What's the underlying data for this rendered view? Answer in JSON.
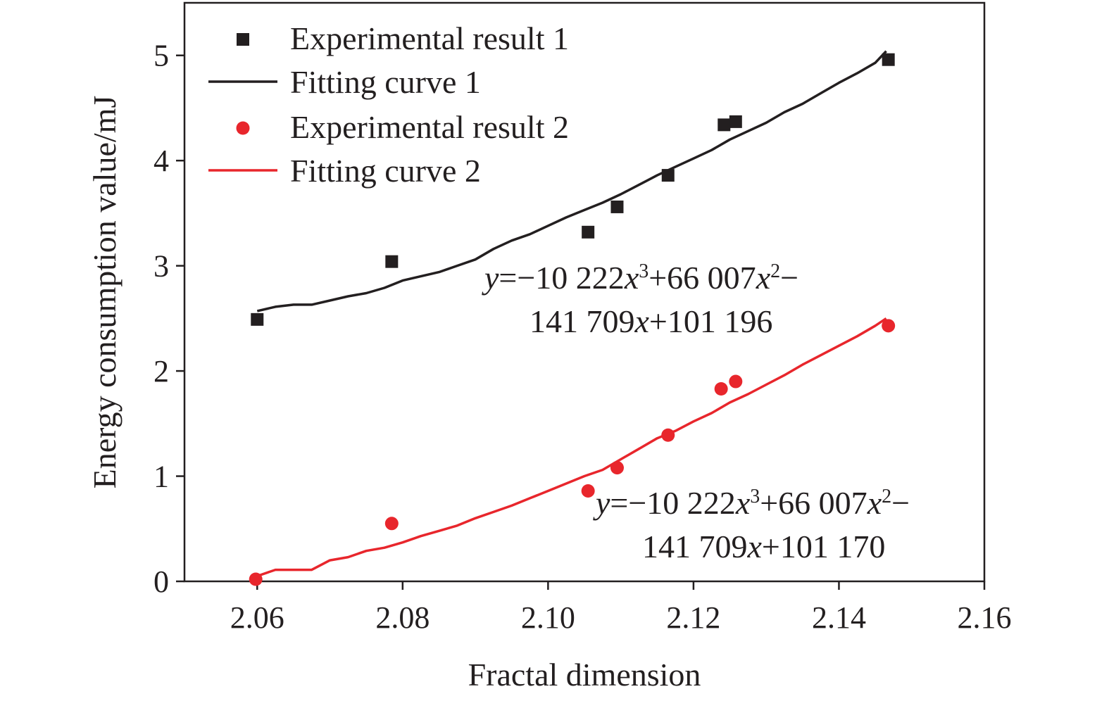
{
  "chart_data": {
    "type": "scatter",
    "xlabel": "Fractal dimension",
    "ylabel": "Energy consumption value/mJ",
    "xlim": [
      2.05,
      2.16
    ],
    "ylim": [
      0,
      5.5
    ],
    "x_ticks": [
      "2.06",
      "2.08",
      "2.10",
      "2.12",
      "2.14",
      "2.16"
    ],
    "y_ticks": [
      "0",
      "1",
      "2",
      "3",
      "4",
      "5"
    ],
    "grid": false,
    "legend_position": "top-left",
    "series": [
      {
        "name": "Experimental result 1",
        "kind": "scatter",
        "marker": "square",
        "color": "#231f20",
        "points": [
          [
            2.06,
            2.49
          ],
          [
            2.0785,
            3.04
          ],
          [
            2.1055,
            3.32
          ],
          [
            2.1095,
            3.56
          ],
          [
            2.1165,
            3.86
          ],
          [
            2.1242,
            4.34
          ],
          [
            2.1258,
            4.37
          ],
          [
            2.1468,
            4.96
          ]
        ]
      },
      {
        "name": "Fitting curve 1",
        "kind": "line",
        "color": "#231f20",
        "points": [
          [
            2.06,
            2.57
          ],
          [
            2.0625,
            2.61
          ],
          [
            2.065,
            2.63
          ],
          [
            2.0675,
            2.63
          ],
          [
            2.07,
            2.67
          ],
          [
            2.0725,
            2.71
          ],
          [
            2.075,
            2.74
          ],
          [
            2.0775,
            2.79
          ],
          [
            2.08,
            2.86
          ],
          [
            2.0825,
            2.9
          ],
          [
            2.085,
            2.94
          ],
          [
            2.0875,
            3.0
          ],
          [
            2.09,
            3.06
          ],
          [
            2.0925,
            3.16
          ],
          [
            2.095,
            3.24
          ],
          [
            2.0975,
            3.3
          ],
          [
            2.1,
            3.38
          ],
          [
            2.1025,
            3.46
          ],
          [
            2.105,
            3.53
          ],
          [
            2.1075,
            3.6
          ],
          [
            2.11,
            3.68
          ],
          [
            2.1125,
            3.77
          ],
          [
            2.115,
            3.86
          ],
          [
            2.1175,
            3.94
          ],
          [
            2.12,
            4.02
          ],
          [
            2.1225,
            4.1
          ],
          [
            2.125,
            4.2
          ],
          [
            2.1275,
            4.28
          ],
          [
            2.13,
            4.36
          ],
          [
            2.1325,
            4.46
          ],
          [
            2.135,
            4.54
          ],
          [
            2.1375,
            4.64
          ],
          [
            2.14,
            4.74
          ],
          [
            2.1425,
            4.83
          ],
          [
            2.145,
            4.93
          ],
          [
            2.1465,
            5.04
          ]
        ]
      },
      {
        "name": "Experimental result 2",
        "kind": "scatter",
        "marker": "circle",
        "color": "#e8262c",
        "points": [
          [
            2.0598,
            0.02
          ],
          [
            2.0785,
            0.55
          ],
          [
            2.1055,
            0.86
          ],
          [
            2.1095,
            1.08
          ],
          [
            2.1165,
            1.39
          ],
          [
            2.1238,
            1.83
          ],
          [
            2.1258,
            1.9
          ],
          [
            2.1468,
            2.43
          ]
        ]
      },
      {
        "name": "Fitting curve 2",
        "kind": "line",
        "color": "#e8262c",
        "points": [
          [
            2.06,
            0.05
          ],
          [
            2.0625,
            0.11
          ],
          [
            2.065,
            0.11
          ],
          [
            2.0675,
            0.11
          ],
          [
            2.07,
            0.2
          ],
          [
            2.0725,
            0.23
          ],
          [
            2.075,
            0.29
          ],
          [
            2.0775,
            0.32
          ],
          [
            2.08,
            0.37
          ],
          [
            2.0825,
            0.43
          ],
          [
            2.085,
            0.48
          ],
          [
            2.0875,
            0.53
          ],
          [
            2.09,
            0.6
          ],
          [
            2.0925,
            0.66
          ],
          [
            2.095,
            0.72
          ],
          [
            2.0975,
            0.79
          ],
          [
            2.1,
            0.86
          ],
          [
            2.1025,
            0.93
          ],
          [
            2.105,
            1.0
          ],
          [
            2.1075,
            1.06
          ],
          [
            2.11,
            1.16
          ],
          [
            2.1125,
            1.26
          ],
          [
            2.115,
            1.36
          ],
          [
            2.1175,
            1.43
          ],
          [
            2.12,
            1.52
          ],
          [
            2.1225,
            1.6
          ],
          [
            2.125,
            1.7
          ],
          [
            2.1275,
            1.78
          ],
          [
            2.13,
            1.87
          ],
          [
            2.1325,
            1.96
          ],
          [
            2.135,
            2.06
          ],
          [
            2.1375,
            2.15
          ],
          [
            2.14,
            2.24
          ],
          [
            2.1425,
            2.33
          ],
          [
            2.145,
            2.43
          ],
          [
            2.1465,
            2.5
          ]
        ]
      }
    ],
    "annotations": [
      {
        "line1_parts": [
          [
            "y",
            true
          ],
          [
            "=−10 222",
            false
          ],
          [
            "x",
            true
          ],
          [
            "3",
            "sup"
          ],
          [
            "+66 007",
            false
          ],
          [
            "x",
            true
          ],
          [
            "2",
            "sup"
          ],
          [
            "−",
            false
          ]
        ],
        "line2_parts": [
          [
            "141 709",
            false
          ],
          [
            "x",
            true
          ],
          [
            "+101 196",
            false
          ]
        ]
      },
      {
        "line1_parts": [
          [
            "y",
            true
          ],
          [
            "=−10 222",
            false
          ],
          [
            "x",
            true
          ],
          [
            "3",
            "sup"
          ],
          [
            "+66 007",
            false
          ],
          [
            "x",
            true
          ],
          [
            "2",
            "sup"
          ],
          [
            "−",
            false
          ]
        ],
        "line2_parts": [
          [
            "141 709",
            false
          ],
          [
            "x",
            true
          ],
          [
            "+101 170",
            false
          ]
        ]
      }
    ]
  }
}
